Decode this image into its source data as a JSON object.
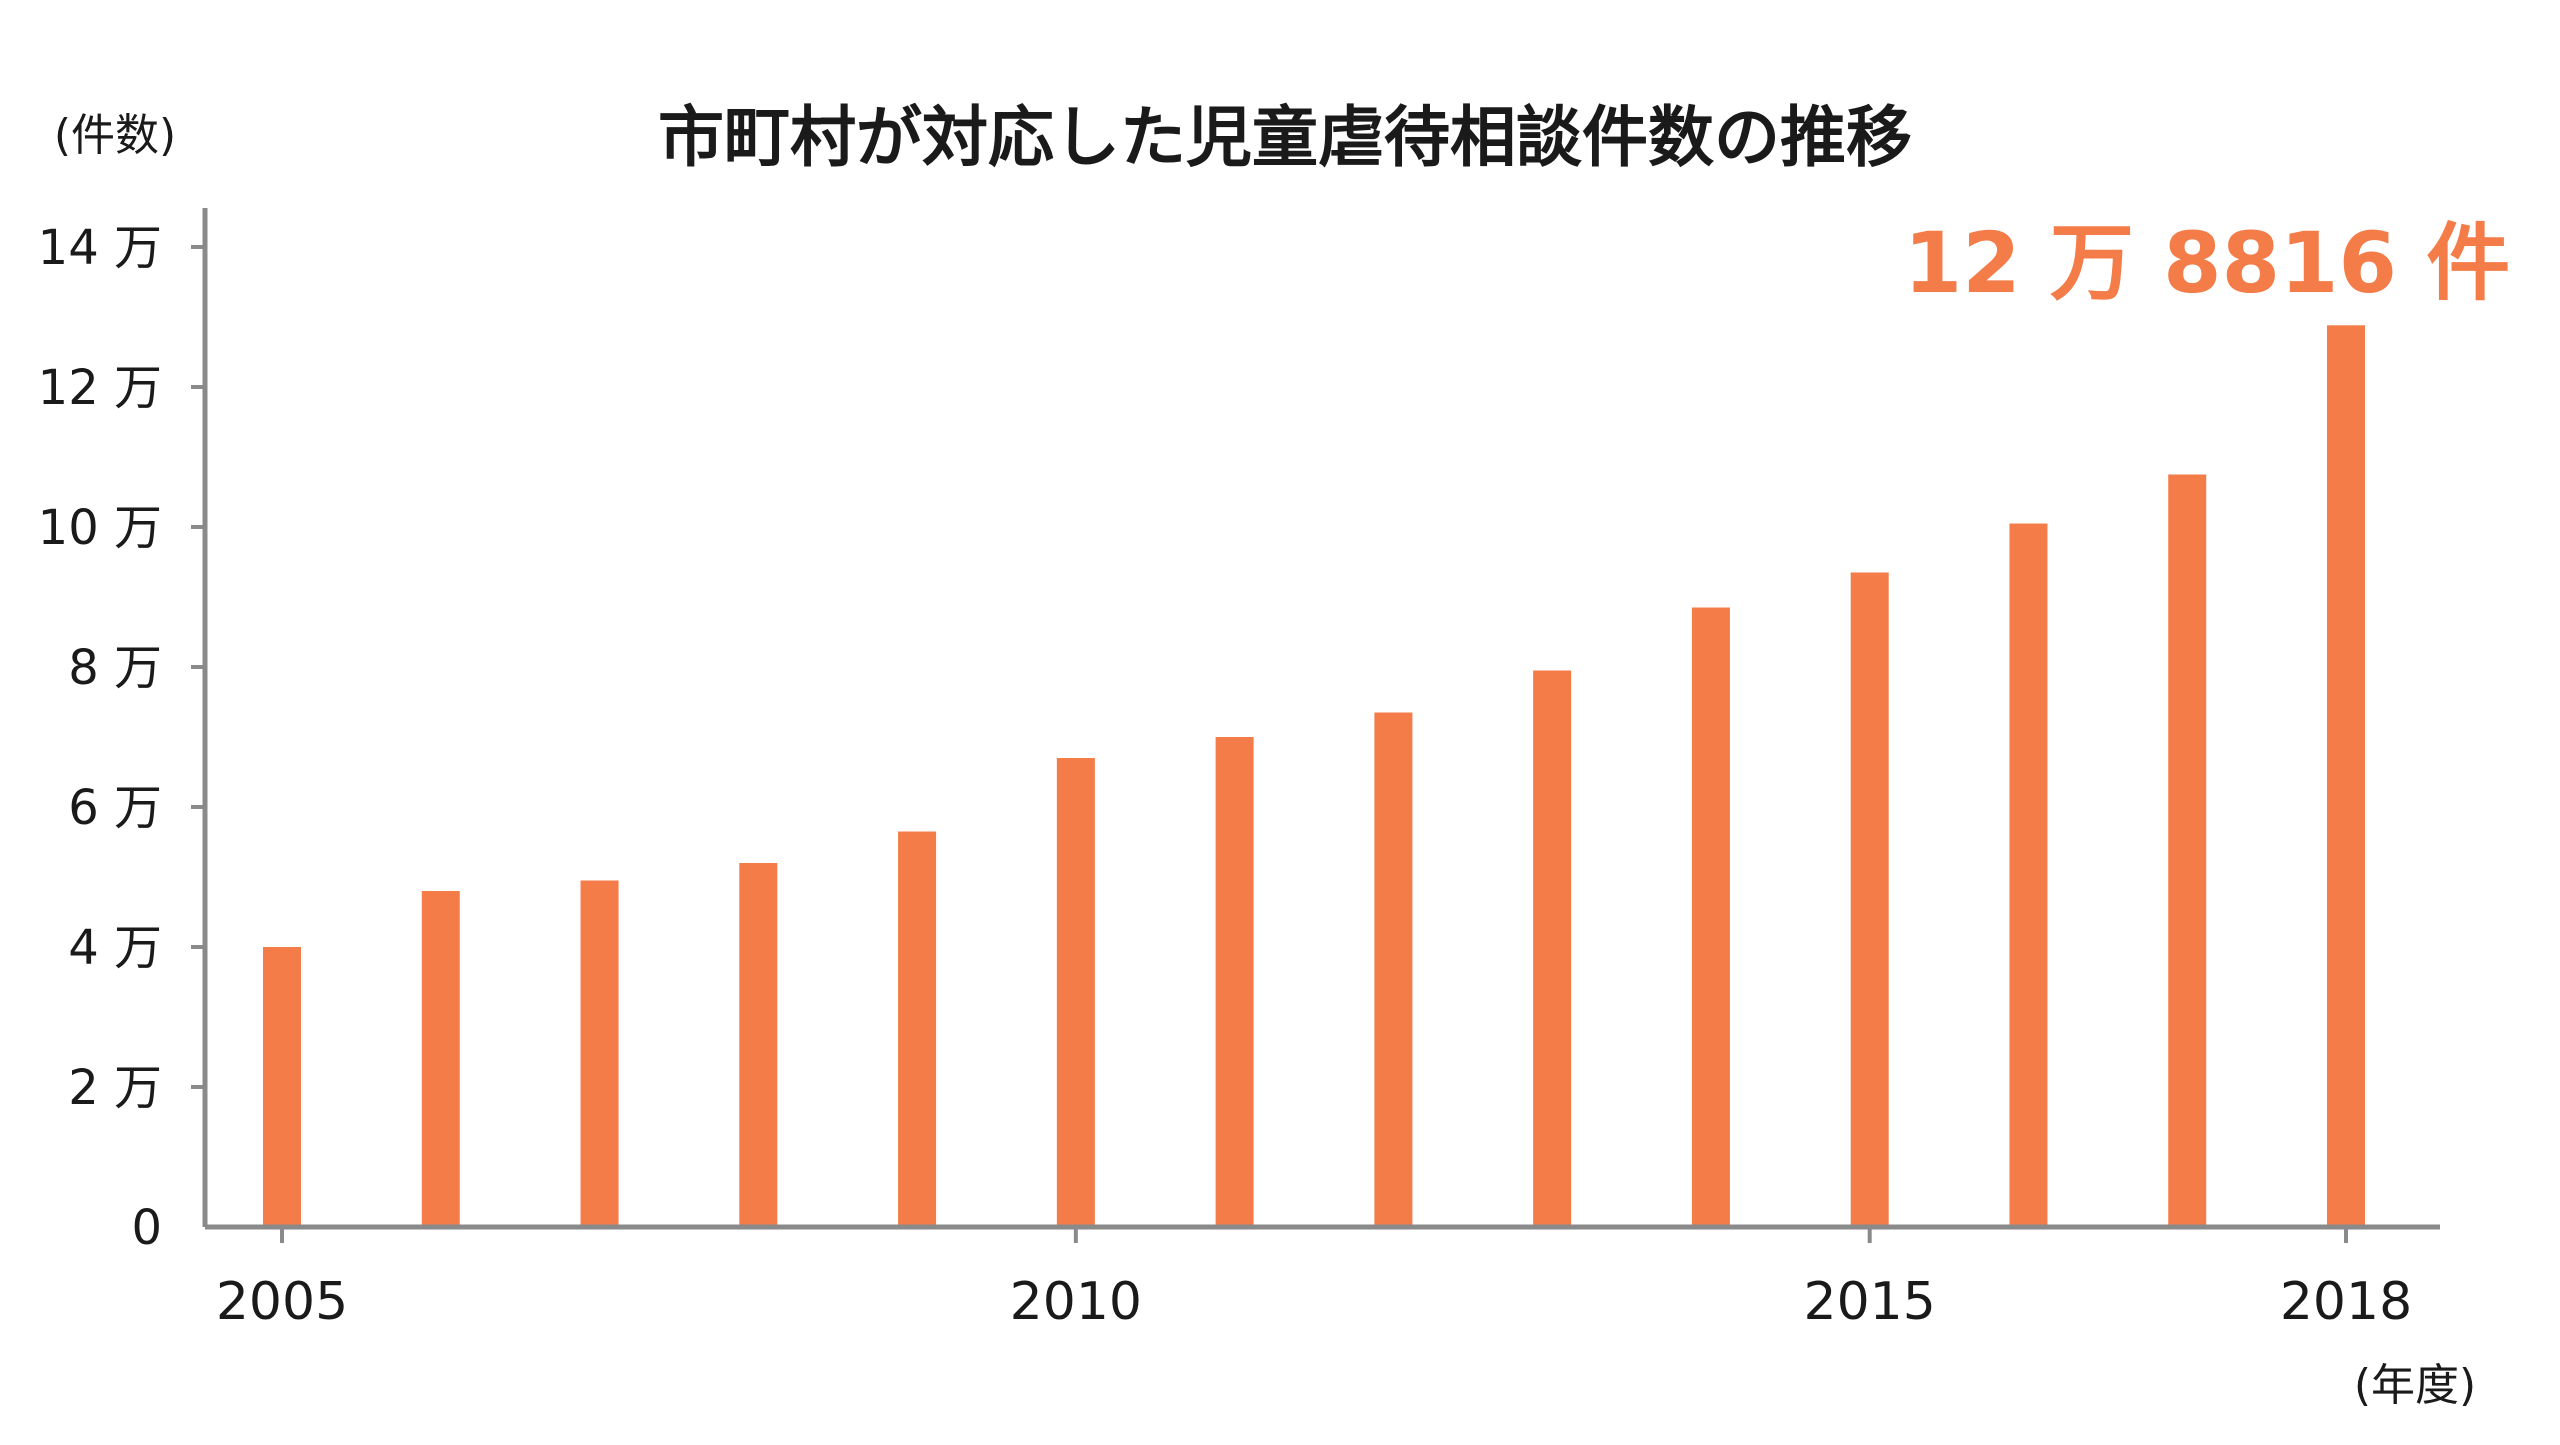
{
  "chart_data": {
    "type": "bar",
    "title": "市町村が対応した児童虐待相談件数の推移",
    "ylabel": "(件数)",
    "xlabel": "(年度)",
    "x": [
      2005,
      2006,
      2007,
      2008,
      2009,
      2010,
      2011,
      2012,
      2013,
      2014,
      2015,
      2016,
      2017,
      2018
    ],
    "values": [
      40000,
      48000,
      49500,
      52000,
      56500,
      67000,
      70000,
      73500,
      79500,
      88500,
      93500,
      100500,
      107500,
      128816
    ],
    "ylim": [
      0,
      140000
    ],
    "yticks": [
      {
        "value": 0,
        "label": "0"
      },
      {
        "value": 20000,
        "label": "2 万"
      },
      {
        "value": 40000,
        "label": "4 万"
      },
      {
        "value": 60000,
        "label": "6 万"
      },
      {
        "value": 80000,
        "label": "8 万"
      },
      {
        "value": 100000,
        "label": "10 万"
      },
      {
        "value": 120000,
        "label": "12 万"
      },
      {
        "value": 140000,
        "label": "14 万"
      }
    ],
    "xticks": [
      {
        "value": 2005,
        "label": "2005"
      },
      {
        "value": 2010,
        "label": "2010"
      },
      {
        "value": 2015,
        "label": "2015"
      },
      {
        "value": 2018,
        "label": "2018"
      }
    ],
    "annotation": {
      "text": "12 万 8816 件",
      "target_year": 2018
    },
    "grid": false,
    "legend": "none"
  },
  "colors": {
    "bar": "#f47c48",
    "annotation": "#f47c48",
    "axis": "#8a8a8a",
    "text": "#1a1a1a"
  }
}
